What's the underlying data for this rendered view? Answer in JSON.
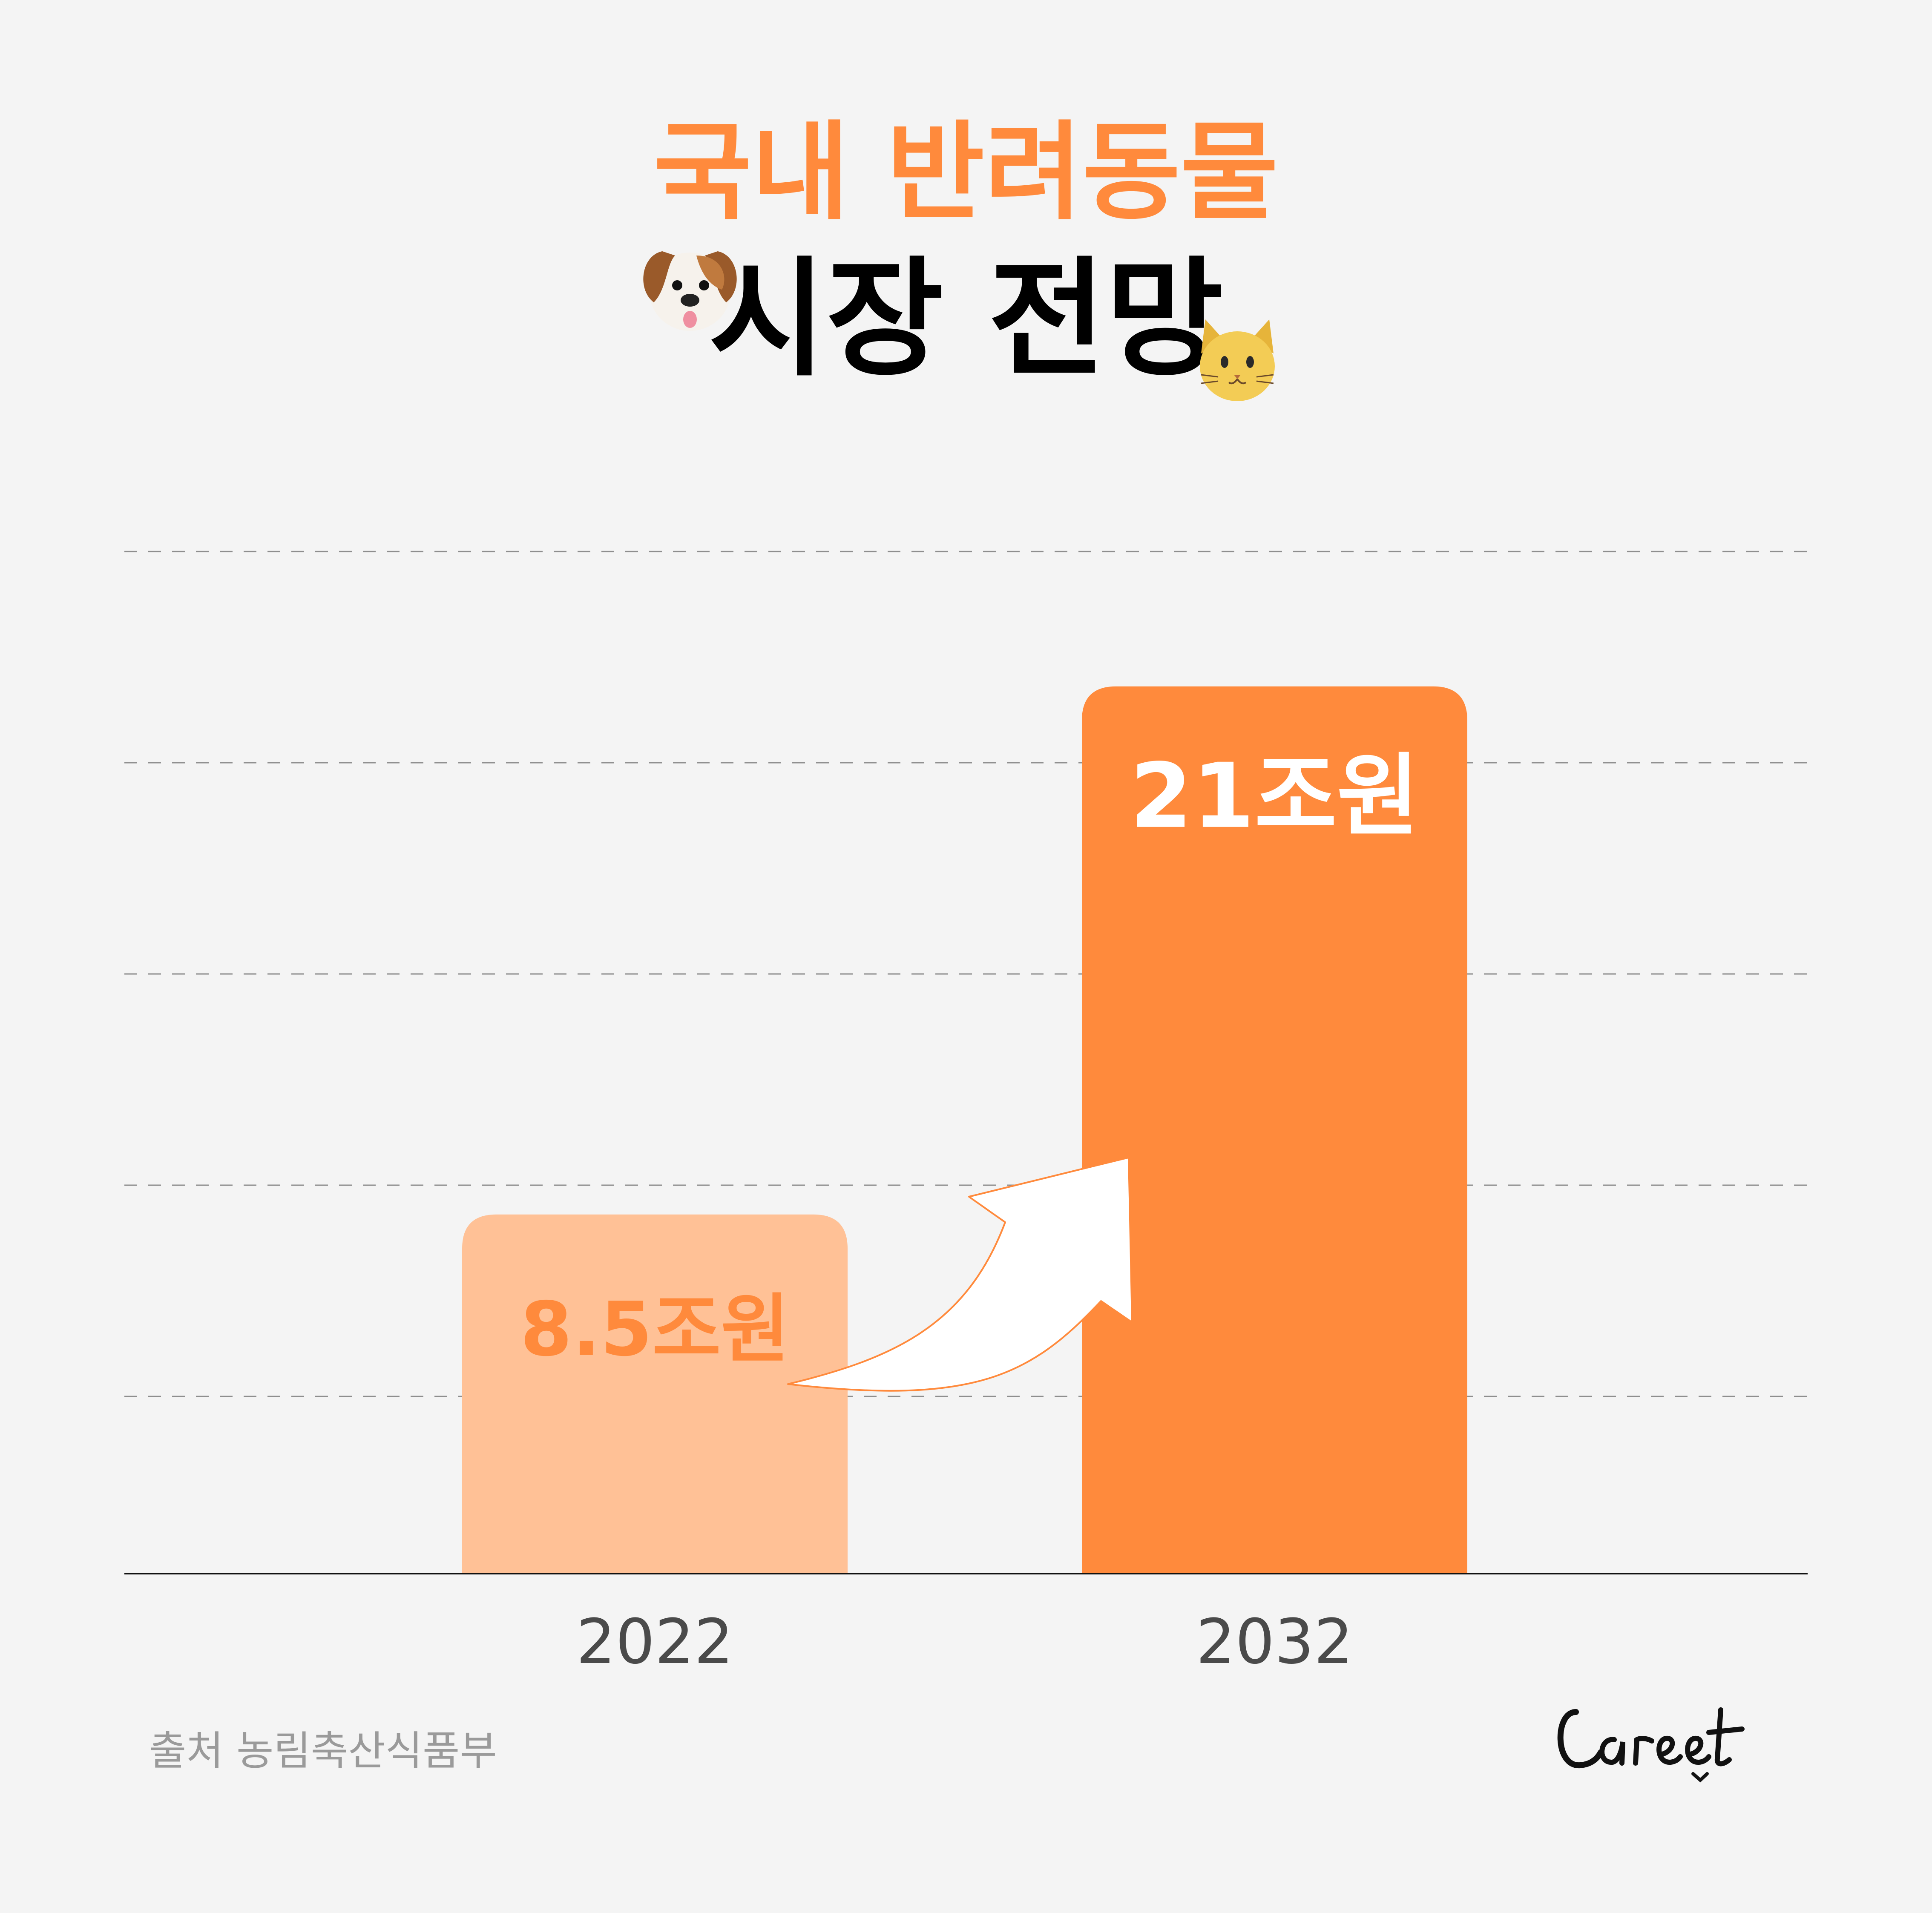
{
  "title_line1": "국내 반려동물",
  "title_line2": "시장 전망",
  "source": "출처 농림축산식품부",
  "brand": "Careet",
  "icons": {
    "left": "dog-face-icon",
    "right": "cat-face-icon"
  },
  "colors": {
    "accent": "#ff8a3c",
    "bar_light": "#ffc196",
    "bar_dark": "#ff8a3c",
    "background": "#f4f4f4",
    "axis_label": "#4a4a4a"
  },
  "chart_data": {
    "type": "bar",
    "categories": [
      "2022",
      "2032"
    ],
    "values": [
      8.5,
      21
    ],
    "data_labels": [
      "8.5조원",
      "21조원"
    ],
    "title": "국내 반려동물 시장 전망",
    "xlabel": "",
    "ylabel": "",
    "ylim": [
      0,
      25
    ],
    "grid": true,
    "legend": "none",
    "annotation": "arrow-up"
  }
}
